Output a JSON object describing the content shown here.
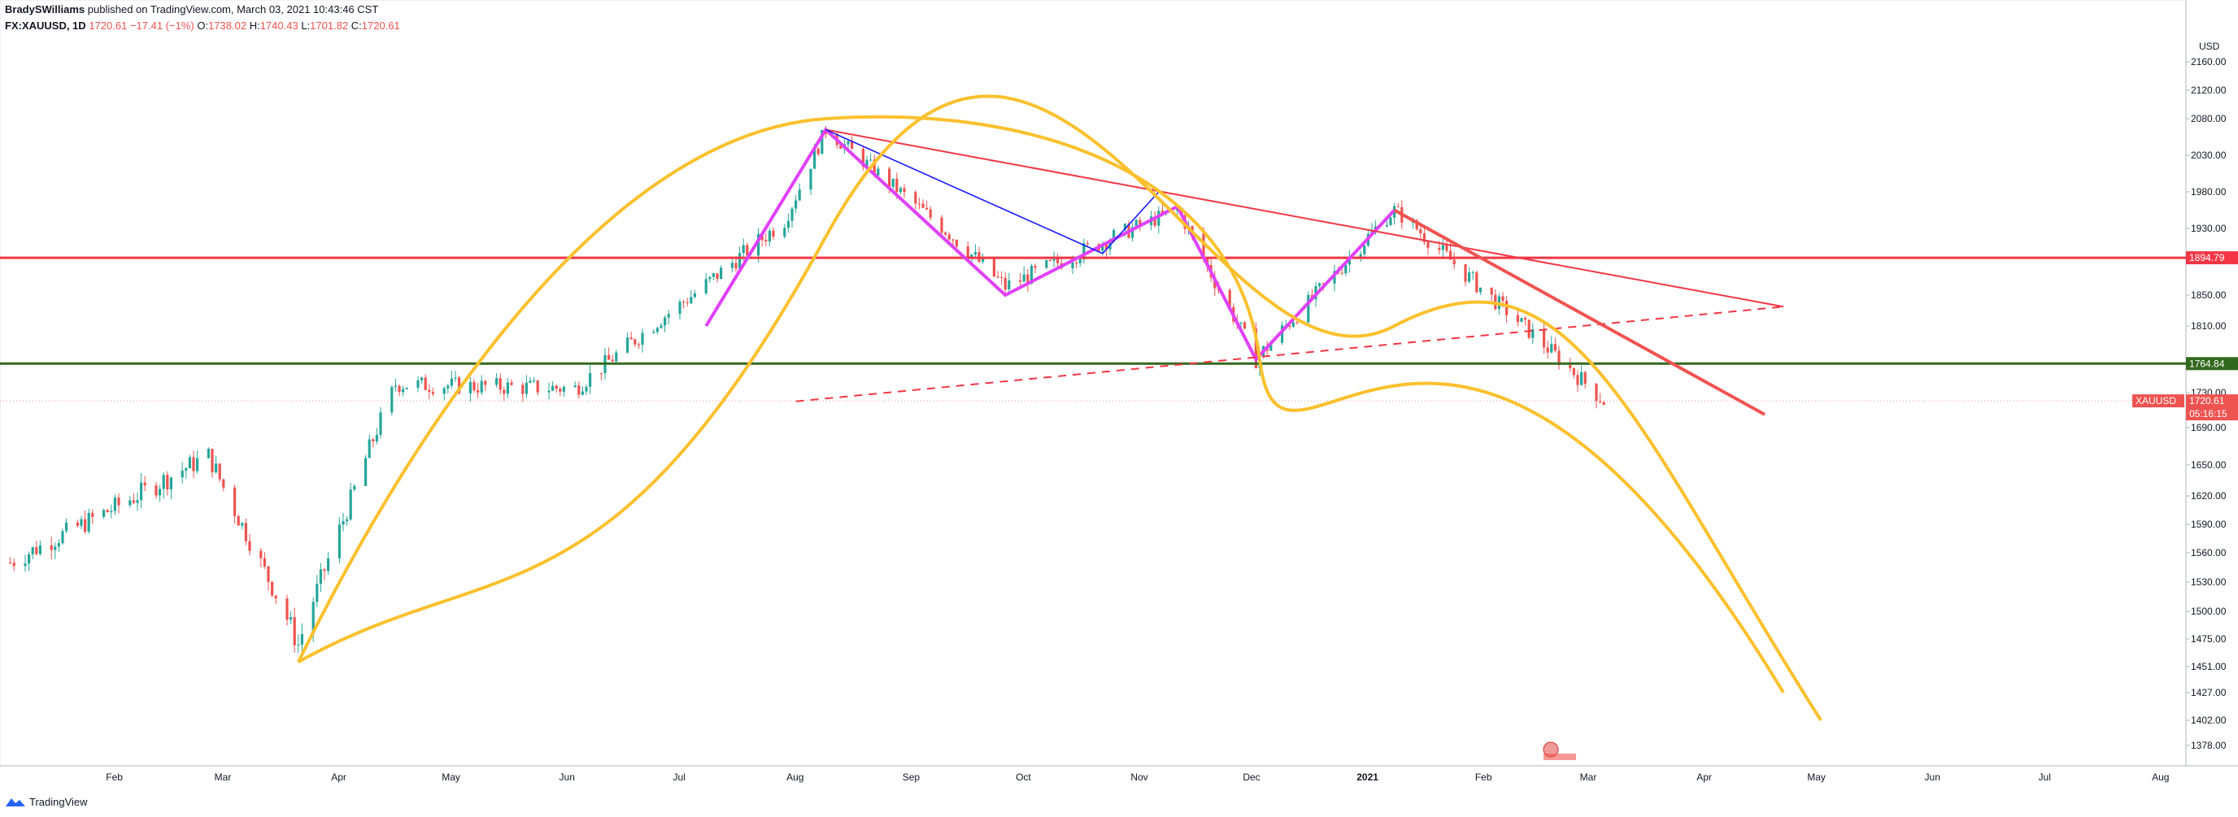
{
  "header": {
    "publisher": "BradySWilliams",
    "published_text": "published on TradingView.com, March 03, 2021 10:43:46 CST",
    "symbol": "FX:XAUUSD, 1D",
    "last": "1720.61",
    "change": "−17.41 (−1%)",
    "o_label": "O:",
    "o": "1738.02",
    "h_label": "H:",
    "h": "1740.43",
    "l_label": "L:",
    "l": "1701.82",
    "c_label": "C:",
    "c": "1720.61"
  },
  "footer": {
    "brand": "TradingView"
  },
  "colors": {
    "up": "#26a69a",
    "down": "#ef5350",
    "resistance": "#f23645",
    "support": "#33691e",
    "curve": "#fbc02d",
    "pattern": "#e040fb",
    "channel": "#1a1aff",
    "arrow": "#ef5350"
  },
  "chart_data": {
    "type": "candlestick",
    "currency": "USD",
    "y_ticks": [
      "2160.00",
      "2120.00",
      "2080.00",
      "2030.00",
      "1980.00",
      "1930.00",
      "1850.00",
      "1810.00",
      "1730.00",
      "1690.00",
      "1650.00",
      "1620.00",
      "1590.00",
      "1560.00",
      "1530.00",
      "1500.00",
      "1475.00",
      "1451.00",
      "1427.00",
      "1402.00",
      "1378.00"
    ],
    "x_ticks": [
      "Feb",
      "Mar",
      "Apr",
      "May",
      "Jun",
      "Jul",
      "Aug",
      "Sep",
      "Oct",
      "Nov",
      "Dec",
      "2021",
      "Feb",
      "Mar",
      "Apr",
      "May",
      "Jun",
      "Jul",
      "Aug"
    ],
    "price_labels": [
      {
        "text": "1894.79",
        "kind": "resistance"
      },
      {
        "text": "1764.84",
        "kind": "support"
      },
      {
        "symbol": "XAUUSD",
        "price": "1720.61",
        "countdown": "05:16:15",
        "kind": "last"
      }
    ],
    "horizontal_lines": [
      {
        "price": 1894.79,
        "label": "1894.79"
      },
      {
        "price": 1764.84,
        "label": "1764.84"
      }
    ],
    "ohlc_last": {
      "open": 1738.02,
      "high": 1740.43,
      "low": 1701.82,
      "close": 1720.61
    },
    "approx_close_path": [
      {
        "date": "2020-01-02",
        "close": 1550
      },
      {
        "date": "2020-02-24",
        "close": 1660
      },
      {
        "date": "2020-03-19",
        "close": 1470
      },
      {
        "date": "2020-04-14",
        "close": 1740
      },
      {
        "date": "2020-06-01",
        "close": 1735
      },
      {
        "date": "2020-07-27",
        "close": 1940
      },
      {
        "date": "2020-08-07",
        "close": 2065
      },
      {
        "date": "2020-09-24",
        "close": 1860
      },
      {
        "date": "2020-11-09",
        "close": 1955
      },
      {
        "date": "2020-11-30",
        "close": 1770
      },
      {
        "date": "2021-01-06",
        "close": 1955
      },
      {
        "date": "2021-03-03",
        "close": 1720.61
      }
    ]
  }
}
